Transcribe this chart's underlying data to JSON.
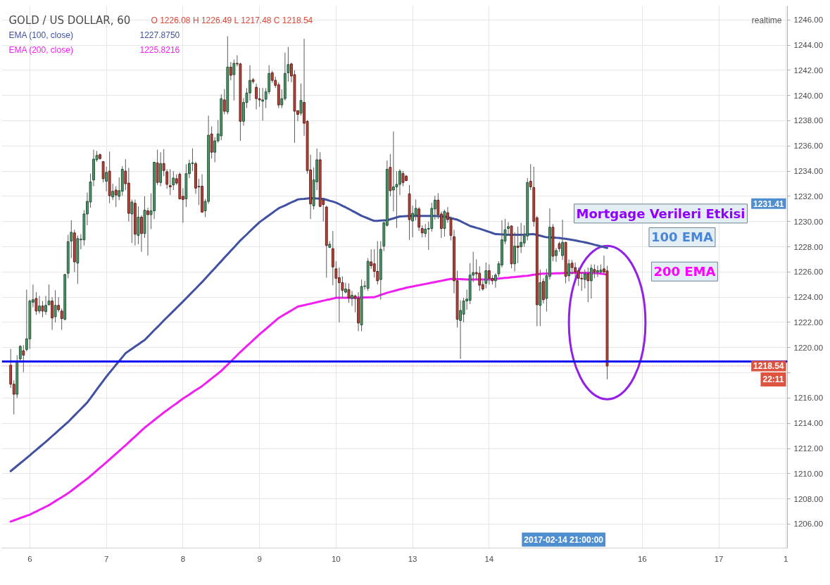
{
  "chart_data": {
    "type": "candlestick",
    "title": "GOLD / US DOLLAR, 60",
    "subtitle": "O 1226.08 H 1226.49 L 1217.48 C 1218.54",
    "categories": [
      null,
      null,
      null,
      null,
      null,
      null,
      "6",
      null,
      null,
      null,
      null,
      null,
      null,
      null,
      null,
      null,
      null,
      null,
      null,
      null,
      null,
      null,
      null,
      null,
      null,
      null,
      null,
      null,
      null,
      null,
      "7",
      null,
      null,
      null,
      null,
      null,
      null,
      null,
      null,
      null,
      null,
      null,
      null,
      null,
      null,
      null,
      null,
      null,
      null,
      null,
      null,
      null,
      null,
      null,
      "8",
      null,
      null,
      null,
      null,
      null,
      null,
      null,
      null,
      null,
      null,
      null,
      null,
      null,
      null,
      null,
      null,
      null,
      null,
      null,
      null,
      null,
      null,
      null,
      "9",
      null,
      null,
      null,
      null,
      null,
      null,
      null,
      null,
      null,
      null,
      null,
      null,
      null,
      null,
      null,
      null,
      null,
      null,
      null,
      null,
      null,
      null,
      null,
      "10",
      null,
      null,
      null,
      null,
      null,
      null,
      null,
      null,
      null,
      null,
      null,
      null,
      null,
      null,
      null,
      null,
      null,
      null,
      null,
      null,
      null,
      null,
      null,
      "13",
      null,
      null,
      null,
      null,
      null,
      null,
      null,
      null,
      null,
      null,
      null,
      null,
      null,
      null,
      null,
      null,
      null,
      null,
      null,
      null,
      null,
      null,
      null,
      "14",
      null,
      null,
      null,
      null,
      null,
      null,
      null,
      null,
      null,
      null,
      null,
      null,
      null,
      null,
      null,
      null,
      null,
      null,
      null,
      null,
      null,
      null,
      null,
      null,
      null,
      null,
      null,
      null,
      null,
      null,
      null,
      null,
      null,
      null,
      null,
      null,
      null,
      null,
      null,
      null,
      null,
      null,
      null,
      null,
      null,
      null,
      null,
      "16",
      null,
      null,
      null,
      null,
      null,
      null,
      null,
      null,
      null,
      null,
      null,
      null,
      null,
      null,
      null,
      null,
      null,
      null,
      null,
      null,
      null,
      null,
      null,
      "17",
      null,
      null,
      null,
      null,
      null,
      null,
      null,
      null,
      null,
      null,
      null,
      null,
      null,
      null,
      null,
      null,
      null,
      null,
      null,
      null,
      "1"
    ],
    "ohlc": [
      [
        1218.6,
        1219.9,
        1216.8,
        1217.1
      ],
      [
        1217.1,
        1217.4,
        1214.7,
        1216.3
      ],
      [
        1216.3,
        1219.4,
        1216.0,
        1218.9
      ],
      [
        1219.1,
        1220.2,
        1218.9,
        1220.1
      ],
      [
        1219.75,
        1220.2,
        1218.05,
        1219.4
      ],
      [
        1219.85,
        1224.6,
        1219.7,
        1220.7
      ],
      [
        1220.7,
        1223.8,
        1219.9,
        1223.7
      ],
      [
        1223.6,
        1225.0,
        1223.2,
        1223.8
      ],
      [
        1223.9,
        1224.4,
        1222.6,
        1222.9
      ],
      [
        1222.9,
        1224.1,
        1222.7,
        1223.3
      ],
      [
        1223.3,
        1223.7,
        1222.4,
        1222.9
      ],
      [
        1222.85,
        1224.1,
        1222.6,
        1223.35
      ],
      [
        1223.4,
        1225.0,
        1223.35,
        1223.7
      ],
      [
        1223.7,
        1224.0,
        1221.4,
        1222.35
      ],
      [
        1222.45,
        1224.55,
        1222.0,
        1223.35
      ],
      [
        1223.35,
        1224.0,
        1222.8,
        1223.0
      ],
      [
        1222.9,
        1223.1,
        1221.4,
        1222.3
      ],
      [
        1222.25,
        1225.85,
        1222.15,
        1225.8
      ],
      [
        1225.9,
        1228.95,
        1225.5,
        1228.4
      ],
      [
        1228.45,
        1230.1,
        1227.1,
        1229.15
      ],
      [
        1229.1,
        1229.35,
        1226.0,
        1226.8
      ],
      [
        1226.7,
        1228.9,
        1225.05,
        1228.65
      ],
      [
        1228.55,
        1229.0,
        1227.8,
        1228.6
      ],
      [
        1228.55,
        1230.9,
        1228.1,
        1230.6
      ],
      [
        1230.6,
        1232.3,
        1229.7,
        1231.6
      ],
      [
        1231.55,
        1233.8,
        1231.1,
        1233.15
      ],
      [
        1233.3,
        1235.7,
        1232.8,
        1234.95
      ],
      [
        1234.9,
        1235.6,
        1234.75,
        1235.25
      ],
      [
        1235.3,
        1235.4,
        1234.9,
        1235.0
      ],
      [
        1234.75,
        1234.8,
        1233.1,
        1233.4
      ],
      [
        1233.2,
        1234.35,
        1232.4,
        1233.9
      ],
      [
        1234.0,
        1235.55,
        1231.45,
        1232.05
      ],
      [
        1231.95,
        1233.0,
        1231.7,
        1232.4
      ],
      [
        1232.5,
        1232.8,
        1231.15,
        1232.1
      ],
      [
        1232.0,
        1233.5,
        1231.7,
        1232.45
      ],
      [
        1232.4,
        1234.4,
        1232.05,
        1234.15
      ],
      [
        1234.0,
        1234.95,
        1232.5,
        1233.0
      ],
      [
        1233.05,
        1234.25,
        1230.0,
        1230.65
      ],
      [
        1230.6,
        1231.75,
        1228.3,
        1231.55
      ],
      [
        1231.45,
        1231.75,
        1228.1,
        1229.0
      ],
      [
        1228.9,
        1231.2,
        1228.2,
        1230.35
      ],
      [
        1230.35,
        1230.5,
        1227.6,
        1229.05
      ],
      [
        1229.05,
        1232.0,
        1228.7,
        1230.9
      ],
      [
        1230.85,
        1231.1,
        1227.3,
        1230.55
      ],
      [
        1230.55,
        1232.25,
        1229.4,
        1230.85
      ],
      [
        1230.85,
        1234.75,
        1230.2,
        1234.7
      ],
      [
        1234.65,
        1235.7,
        1232.9,
        1233.1
      ],
      [
        1233.1,
        1235.5,
        1232.8,
        1234.6
      ],
      [
        1234.6,
        1235.75,
        1233.6,
        1234.05
      ],
      [
        1233.95,
        1234.15,
        1232.6,
        1232.95
      ],
      [
        1232.85,
        1234.15,
        1232.1,
        1232.75
      ],
      [
        1232.9,
        1234.0,
        1232.5,
        1233.45
      ],
      [
        1233.4,
        1233.75,
        1232.9,
        1233.05
      ],
      [
        1233.75,
        1233.9,
        1231.75,
        1231.8
      ],
      [
        1232.0,
        1232.65,
        1229.9,
        1231.75
      ],
      [
        1231.8,
        1234.55,
        1231.15,
        1233.8
      ],
      [
        1233.8,
        1234.9,
        1233.45,
        1234.6
      ],
      [
        1234.6,
        1235.8,
        1234.0,
        1234.65
      ],
      [
        1234.6,
        1234.75,
        1232.2,
        1232.65
      ],
      [
        1232.75,
        1233.4,
        1231.3,
        1232.8
      ],
      [
        1232.8,
        1233.75,
        1230.7,
        1230.75
      ],
      [
        1230.85,
        1231.8,
        1230.35,
        1231.6
      ],
      [
        1231.6,
        1238.4,
        1231.4,
        1236.85
      ],
      [
        1236.95,
        1237.55,
        1235.0,
        1235.5
      ],
      [
        1235.5,
        1236.7,
        1234.7,
        1236.4
      ],
      [
        1236.4,
        1238.05,
        1236.25,
        1236.95
      ],
      [
        1236.8,
        1240.1,
        1236.45,
        1239.75
      ],
      [
        1239.65,
        1240.5,
        1238.5,
        1238.75
      ],
      [
        1238.7,
        1244.7,
        1238.5,
        1242.25
      ],
      [
        1242.25,
        1242.65,
        1241.2,
        1241.6
      ],
      [
        1241.65,
        1242.85,
        1239.6,
        1242.55
      ],
      [
        1242.55,
        1243.2,
        1242.3,
        1242.5
      ],
      [
        1242.5,
        1242.6,
        1236.4,
        1237.95
      ],
      [
        1237.95,
        1239.8,
        1237.6,
        1239.45
      ],
      [
        1239.45,
        1240.6,
        1239.0,
        1240.2
      ],
      [
        1240.2,
        1242.4,
        1239.6,
        1241.2
      ],
      [
        1241.25,
        1241.4,
        1240.95,
        1241.1
      ],
      [
        1240.65,
        1240.95,
        1238.9,
        1239.75
      ],
      [
        1239.75,
        1240.6,
        1239.1,
        1239.65
      ],
      [
        1239.55,
        1240.6,
        1238.0,
        1239.65
      ],
      [
        1239.7,
        1240.6,
        1239.0,
        1240.3
      ],
      [
        1240.3,
        1242.4,
        1240.1,
        1241.75
      ],
      [
        1241.8,
        1241.95,
        1241.0,
        1241.2
      ],
      [
        1241.2,
        1241.5,
        1240.6,
        1240.8
      ],
      [
        1240.85,
        1241.05,
        1239.0,
        1239.25
      ],
      [
        1239.25,
        1240.5,
        1239.0,
        1239.75
      ],
      [
        1239.75,
        1243.4,
        1239.6,
        1241.75
      ],
      [
        1241.8,
        1243.85,
        1241.1,
        1242.45
      ],
      [
        1242.5,
        1242.6,
        1241.05,
        1241.55
      ],
      [
        1241.65,
        1242.0,
        1236.25,
        1238.75
      ],
      [
        1238.8,
        1238.8,
        1237.95,
        1238.5
      ],
      [
        1238.6,
        1240.95,
        1238.4,
        1239.6
      ],
      [
        1239.45,
        1244.5,
        1236.8,
        1237.8
      ],
      [
        1237.95,
        1238.05,
        1233.8,
        1234.05
      ],
      [
        1234.1,
        1235.3,
        1230.2,
        1231.4
      ],
      [
        1231.25,
        1234.3,
        1230.95,
        1233.3
      ],
      [
        1233.15,
        1235.8,
        1232.5,
        1234.9
      ],
      [
        1234.9,
        1235.5,
        1231.15,
        1231.2
      ],
      [
        1231.7,
        1231.85,
        1230.0,
        1231.35
      ],
      [
        1231.15,
        1231.25,
        1225.55,
        1228.1
      ],
      [
        1227.95,
        1228.45,
        1227.9,
        1228.2
      ],
      [
        1227.85,
        1229.25,
        1224.95,
        1226.4
      ],
      [
        1226.25,
        1226.85,
        1223.95,
        1225.5
      ],
      [
        1225.55,
        1226.35,
        1222.0,
        1225.15
      ],
      [
        1225.15,
        1225.65,
        1223.95,
        1224.55
      ],
      [
        1224.4,
        1225.15,
        1224.3,
        1224.65
      ],
      [
        1224.6,
        1225.1,
        1223.55,
        1223.95
      ],
      [
        1223.9,
        1224.5,
        1223.3,
        1224.15
      ],
      [
        1224.1,
        1224.2,
        1222.8,
        1223.9
      ],
      [
        1223.9,
        1224.4,
        1221.3,
        1221.95
      ],
      [
        1221.8,
        1225.4,
        1221.3,
        1224.85
      ],
      [
        1224.85,
        1225.3,
        1224.6,
        1224.9
      ],
      [
        1224.7,
        1227.1,
        1224.5,
        1226.85
      ],
      [
        1226.8,
        1227.8,
        1226.25,
        1226.5
      ],
      [
        1226.65,
        1227.8,
        1225.55,
        1226.05
      ],
      [
        1226.05,
        1228.45,
        1225.0,
        1225.3
      ],
      [
        1225.4,
        1228.45,
        1223.8,
        1227.8
      ],
      [
        1228.05,
        1230.0,
        1227.65,
        1229.9
      ],
      [
        1229.7,
        1234.85,
        1229.6,
        1234.15
      ],
      [
        1234.3,
        1235.35,
        1232.0,
        1232.45
      ],
      [
        1232.5,
        1237.15,
        1230.8,
        1232.75
      ],
      [
        1232.75,
        1234.0,
        1229.5,
        1232.95
      ],
      [
        1232.95,
        1234.15,
        1232.1,
        1234.0
      ],
      [
        1233.8,
        1234.0,
        1232.8,
        1233.1
      ],
      [
        1233.6,
        1233.7,
        1233.2,
        1233.25
      ],
      [
        1232.2,
        1232.9,
        1228.55,
        1230.15
      ],
      [
        1230.05,
        1231.25,
        1228.75,
        1230.65
      ],
      [
        1230.5,
        1231.75,
        1230.1,
        1231.05
      ],
      [
        1231.0,
        1231.15,
        1229.25,
        1229.55
      ],
      [
        1229.45,
        1229.7,
        1228.75,
        1229.1
      ],
      [
        1229.05,
        1229.8,
        1228.75,
        1229.4
      ],
      [
        1229.4,
        1230.0,
        1227.75,
        1229.45
      ],
      [
        1229.45,
        1231.5,
        1229.2,
        1231.05
      ],
      [
        1231.0,
        1232.05,
        1230.15,
        1231.7
      ],
      [
        1231.7,
        1232.25,
        1230.2,
        1230.55
      ],
      [
        1230.6,
        1230.8,
        1228.7,
        1229.45
      ],
      [
        1229.45,
        1230.95,
        1228.8,
        1230.8
      ],
      [
        1230.7,
        1231.15,
        1229.9,
        1230.15
      ],
      [
        1230.2,
        1230.4,
        1228.5,
        1228.9
      ],
      [
        1228.8,
        1229.35,
        1224.3,
        1225.3
      ],
      [
        1225.3,
        1226.1,
        1221.6,
        1222.25
      ],
      [
        1222.15,
        1223.75,
        1219.1,
        1222.95
      ],
      [
        1222.65,
        1223.95,
        1222.0,
        1223.7
      ],
      [
        1223.7,
        1224.6,
        1223.0,
        1223.85
      ],
      [
        1223.75,
        1226.7,
        1223.45,
        1225.75
      ],
      [
        1225.75,
        1227.6,
        1225.2,
        1225.95
      ],
      [
        1225.95,
        1227.0,
        1225.4,
        1225.85
      ],
      [
        1225.9,
        1226.45,
        1224.5,
        1224.95
      ],
      [
        1225.0,
        1225.3,
        1224.5,
        1224.65
      ],
      [
        1225.1,
        1226.75,
        1224.7,
        1226.1
      ],
      [
        1226.1,
        1226.6,
        1225.0,
        1225.5
      ],
      [
        1225.5,
        1225.75,
        1225.0,
        1225.3
      ],
      [
        1225.3,
        1225.9,
        1224.75,
        1225.75
      ],
      [
        1225.85,
        1226.85,
        1225.6,
        1226.65
      ],
      [
        1226.55,
        1230.1,
        1226.35,
        1228.55
      ],
      [
        1228.45,
        1230.2,
        1228.2,
        1229.35
      ],
      [
        1229.45,
        1229.95,
        1228.9,
        1229.6
      ],
      [
        1229.65,
        1229.7,
        1226.3,
        1226.65
      ],
      [
        1226.65,
        1229.15,
        1226.05,
        1228.05
      ],
      [
        1228.05,
        1229.6,
        1226.7,
        1227.95
      ],
      [
        1228.0,
        1229.9,
        1227.5,
        1228.35
      ],
      [
        1228.3,
        1229.7,
        1228.0,
        1228.85
      ],
      [
        1228.85,
        1233.45,
        1228.5,
        1233.1
      ],
      [
        1233.2,
        1234.55,
        1232.5,
        1232.75
      ],
      [
        1232.7,
        1234.35,
        1229.6,
        1230.0
      ],
      [
        1230.3,
        1230.45,
        1221.7,
        1223.4
      ],
      [
        1223.35,
        1226.2,
        1221.7,
        1225.15
      ],
      [
        1225.25,
        1225.5,
        1223.5,
        1223.8
      ],
      [
        1223.9,
        1226.25,
        1222.85,
        1225.7
      ],
      [
        1225.65,
        1231.05,
        1225.4,
        1229.55
      ],
      [
        1229.55,
        1229.8,
        1226.85,
        1227.25
      ],
      [
        1227.3,
        1227.9,
        1226.8,
        1227.7
      ],
      [
        1228.25,
        1228.4,
        1227.6,
        1227.85
      ],
      [
        1227.3,
        1230.15,
        1226.95,
        1228.35
      ],
      [
        1228.35,
        1228.4,
        1225.1,
        1225.65
      ],
      [
        1225.7,
        1227.0,
        1225.25,
        1226.65
      ],
      [
        1226.7,
        1226.95,
        1225.8,
        1226.35
      ],
      [
        1226.35,
        1226.75,
        1225.5,
        1226.0
      ],
      [
        1226.1,
        1226.35,
        1224.9,
        1225.5
      ],
      [
        1225.5,
        1226.0,
        1224.5,
        1225.45
      ],
      [
        1225.4,
        1226.2,
        1224.7,
        1225.85
      ],
      [
        1225.85,
        1226.35,
        1223.6,
        1225.3
      ],
      [
        1225.3,
        1226.6,
        1223.9,
        1226.3
      ],
      [
        1226.2,
        1226.6,
        1225.5,
        1226.0
      ],
      [
        1226.0,
        1226.5,
        1225.6,
        1226.1
      ],
      [
        1226.0,
        1226.6,
        1225.8,
        1226.15
      ],
      [
        1226.25,
        1227.3,
        1225.8,
        1226.0
      ],
      [
        1226.08,
        1226.49,
        1217.48,
        1218.54
      ],
      null,
      null,
      null,
      null,
      null,
      null,
      null,
      null,
      null,
      null,
      null,
      null,
      null,
      null,
      null,
      null,
      null,
      null,
      null,
      null,
      null,
      null,
      null,
      null,
      null,
      null,
      null,
      null,
      null,
      null,
      null,
      null,
      null,
      null,
      null,
      null,
      null,
      null,
      null,
      null,
      null,
      null,
      null,
      null,
      null,
      null,
      null,
      null,
      null,
      null,
      null,
      null,
      null,
      null,
      null,
      null
    ],
    "series": [
      {
        "name": "EMA (100, close)",
        "type": "line",
        "color": "#3f51a0",
        "values": [
          1210.2,
          1210.41,
          1210.62,
          1210.83,
          1211.03,
          1211.24,
          1211.45,
          1211.67,
          1211.88,
          1212.1,
          1212.32,
          1212.53,
          1212.75,
          1212.98,
          1213.2,
          1213.43,
          1213.65,
          1213.88,
          1214.1,
          1214.36,
          1214.62,
          1214.88,
          1215.13,
          1215.39,
          1215.65,
          1215.99,
          1216.33,
          1216.68,
          1217.02,
          1217.36,
          1217.7,
          1218.01,
          1218.32,
          1218.63,
          1218.93,
          1219.24,
          1219.55,
          1219.73,
          1219.9,
          1220.08,
          1220.25,
          1220.43,
          1220.6,
          1220.86,
          1221.12,
          1221.38,
          1221.63,
          1221.89,
          1222.15,
          1222.4,
          1222.65,
          1222.9,
          1223.15,
          1223.4,
          1223.65,
          1223.91,
          1224.17,
          1224.43,
          1224.68,
          1224.94,
          1225.2,
          1225.48,
          1225.75,
          1226.03,
          1226.3,
          1226.58,
          1226.85,
          1227.13,
          1227.4,
          1227.68,
          1227.95,
          1228.23,
          1228.5,
          1228.74,
          1228.98,
          1229.23,
          1229.47,
          1229.71,
          1229.95,
          1230.13,
          1230.32,
          1230.5,
          1230.68,
          1230.87,
          1231.05,
          1231.17,
          1231.28,
          1231.4,
          1231.52,
          1231.63,
          1231.75,
          1231.78,
          1231.8,
          1231.83,
          1231.85,
          1231.84,
          1231.83,
          1231.81,
          1231.8,
          1231.73,
          1231.65,
          1231.58,
          1231.5,
          1231.38,
          1231.25,
          1231.13,
          1231.0,
          1230.86,
          1230.73,
          1230.59,
          1230.45,
          1230.35,
          1230.25,
          1230.15,
          1230.05,
          1230.06,
          1230.08,
          1230.09,
          1230.1,
          1230.18,
          1230.25,
          1230.33,
          1230.4,
          1230.41,
          1230.43,
          1230.44,
          1230.45,
          1230.45,
          1230.45,
          1230.45,
          1230.45,
          1230.45,
          1230.45,
          1230.44,
          1230.43,
          1230.41,
          1230.4,
          1230.34,
          1230.28,
          1230.21,
          1230.15,
          1230.03,
          1229.9,
          1229.78,
          1229.65,
          1229.58,
          1229.5,
          1229.43,
          1229.35,
          1229.26,
          1229.18,
          1229.09,
          1229.0,
          1228.99,
          1228.98,
          1228.96,
          1228.95,
          1228.95,
          1228.95,
          1228.95,
          1228.95,
          1228.96,
          1228.98,
          1228.99,
          1229.0,
          1228.94,
          1228.88,
          1228.81,
          1228.75,
          1228.74,
          1228.73,
          1228.71,
          1228.7,
          1228.66,
          1228.63,
          1228.59,
          1228.55,
          1228.5,
          1228.45,
          1228.4,
          1228.35,
          1228.29,
          1228.23,
          1228.16,
          1228.1,
          1228.03,
          1227.97,
          1227.9,
          null,
          null,
          null,
          null,
          null,
          null,
          null,
          null,
          null,
          null,
          null,
          null,
          null,
          null,
          null,
          null,
          null,
          null,
          null,
          null,
          null,
          null,
          null,
          null,
          null,
          null,
          null,
          null,
          null,
          null,
          null,
          null,
          null,
          null,
          null,
          null,
          null,
          null,
          null,
          null,
          null,
          null,
          null,
          null,
          null,
          null,
          null,
          null,
          null,
          null,
          null,
          null,
          null,
          null,
          null,
          null
        ]
      },
      {
        "name": "EMA (200, close)",
        "type": "line",
        "color": "#f01ef0",
        "values": [
          1206.2,
          1206.29,
          1206.38,
          1206.48,
          1206.57,
          1206.66,
          1206.75,
          1206.88,
          1207.0,
          1207.13,
          1207.25,
          1207.38,
          1207.5,
          1207.66,
          1207.82,
          1207.98,
          1208.13,
          1208.29,
          1208.45,
          1208.64,
          1208.83,
          1209.03,
          1209.22,
          1209.41,
          1209.6,
          1209.82,
          1210.03,
          1210.25,
          1210.47,
          1210.68,
          1210.9,
          1211.13,
          1211.35,
          1211.58,
          1211.8,
          1212.03,
          1212.25,
          1212.48,
          1212.72,
          1212.95,
          1213.18,
          1213.42,
          1213.65,
          1213.85,
          1214.05,
          1214.25,
          1214.45,
          1214.65,
          1214.85,
          1215.03,
          1215.22,
          1215.4,
          1215.58,
          1215.77,
          1215.95,
          1216.12,
          1216.28,
          1216.45,
          1216.62,
          1216.78,
          1216.95,
          1217.15,
          1217.35,
          1217.55,
          1217.75,
          1217.95,
          1218.15,
          1218.4,
          1218.65,
          1218.9,
          1219.15,
          1219.4,
          1219.65,
          1219.88,
          1220.12,
          1220.35,
          1220.58,
          1220.82,
          1221.05,
          1221.27,
          1221.48,
          1221.7,
          1221.92,
          1222.13,
          1222.35,
          1222.5,
          1222.65,
          1222.8,
          1222.95,
          1223.1,
          1223.25,
          1223.31,
          1223.37,
          1223.43,
          1223.48,
          1223.54,
          1223.6,
          1223.66,
          1223.72,
          1223.78,
          1223.83,
          1223.89,
          1223.95,
          1223.95,
          1223.95,
          1223.95,
          1223.95,
          1223.95,
          1223.95,
          1223.96,
          1223.97,
          1223.98,
          1223.98,
          1223.99,
          1224.0,
          1224.09,
          1224.18,
          1224.26,
          1224.35,
          1224.42,
          1224.48,
          1224.55,
          1224.62,
          1224.68,
          1224.75,
          1224.8,
          1224.85,
          1224.9,
          1224.95,
          1225.0,
          1225.05,
          1225.1,
          1225.15,
          1225.2,
          1225.25,
          1225.3,
          1225.35,
          1225.4,
          1225.45,
          1225.44,
          1225.43,
          1225.43,
          1225.42,
          1225.41,
          1225.4,
          1225.4,
          1225.4,
          1225.4,
          1225.4,
          1225.4,
          1225.4,
          1225.43,
          1225.45,
          1225.48,
          1225.5,
          1225.53,
          1225.55,
          1225.58,
          1225.6,
          1225.63,
          1225.65,
          1225.68,
          1225.7,
          1225.74,
          1225.78,
          1225.81,
          1225.85,
          1225.86,
          1225.87,
          1225.87,
          1225.88,
          1225.89,
          1225.9,
          1225.91,
          1225.92,
          1225.93,
          1225.93,
          1225.94,
          1225.95,
          1225.94,
          1225.93,
          1225.93,
          1225.92,
          1225.91,
          1225.9,
          1225.87,
          1225.83,
          1225.8,
          null,
          null,
          null,
          null,
          null,
          null,
          null,
          null,
          null,
          null,
          null,
          null,
          null,
          null,
          null,
          null,
          null,
          null,
          null,
          null,
          null,
          null,
          null,
          null,
          null,
          null,
          null,
          null,
          null,
          null,
          null,
          null,
          null,
          null,
          null,
          null,
          null,
          null,
          null,
          null,
          null,
          null,
          null,
          null,
          null,
          null,
          null,
          null,
          null,
          null,
          null,
          null,
          null,
          null,
          null,
          null
        ]
      }
    ],
    "ylim": [
      1204.1,
      1247.1
    ],
    "yticks": [
      {
        "value": 1206,
        "label": "1206.00"
      },
      {
        "value": 1208,
        "label": "1208.00"
      },
      {
        "value": 1210,
        "label": "1210.00"
      },
      {
        "value": 1212,
        "label": "1212.00"
      },
      {
        "value": 1214,
        "label": "1214.00"
      },
      {
        "value": 1216,
        "label": "1216.00"
      },
      {
        "value": 1218,
        "label": null
      },
      {
        "value": 1220,
        "label": "1220.00"
      },
      {
        "value": 1222,
        "label": "1222.00"
      },
      {
        "value": 1224,
        "label": "1224.00"
      },
      {
        "value": 1226,
        "label": "1226.00"
      },
      {
        "value": 1228,
        "label": "1228.00"
      },
      {
        "value": 1230,
        "label": "1230.00"
      },
      {
        "value": 1232,
        "label": "1232.00"
      },
      {
        "value": 1234,
        "label": "1234.00"
      },
      {
        "value": 1236,
        "label": "1236.00"
      },
      {
        "value": 1238,
        "label": "1238.00"
      },
      {
        "value": 1240,
        "label": "1240.00"
      },
      {
        "value": 1242,
        "label": "1242.00"
      },
      {
        "value": 1244,
        "label": "1244.00"
      },
      {
        "value": 1246,
        "label": "1246.00"
      }
    ],
    "grid": true,
    "legend": "top left",
    "ref_lines": [
      {
        "axis": "y",
        "value": 1218.9,
        "color": "#1010ee"
      },
      {
        "axis": "y",
        "value": 1218.54,
        "label": "1218.54",
        "color": "#dd5540",
        "line_style": "dotted"
      }
    ],
    "annotations": [
      "1227.8750",
      "1225.8216",
      "Mortgage Verileri Etkisi",
      "100 EMA",
      "200 EMA",
      "1231.41",
      "22:11",
      "2017-02-14 21:00:00",
      "realtime"
    ]
  }
}
